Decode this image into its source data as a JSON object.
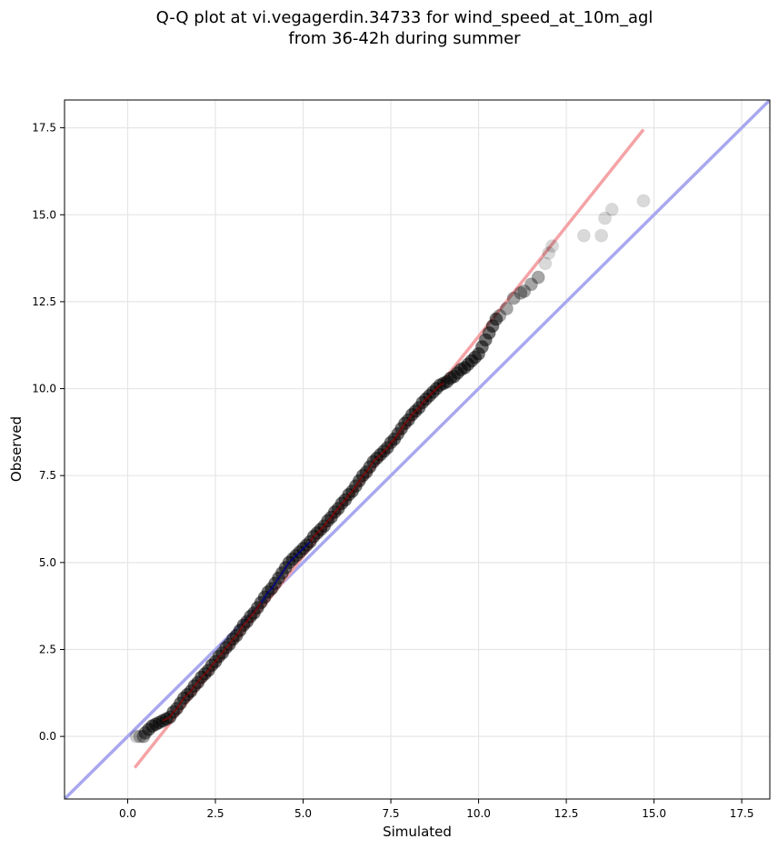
{
  "title_line1": "Q-Q plot at vi.vegagerdin.34733 for wind_speed_at_10m_agl",
  "title_line2": "from 36-42h during summer",
  "chart_data": {
    "type": "scatter",
    "xlabel": "Simulated",
    "ylabel": "Observed",
    "xlim": [
      -1.8,
      18.3
    ],
    "ylim": [
      -1.8,
      18.3
    ],
    "xticks": [
      0.0,
      2.5,
      5.0,
      7.5,
      10.0,
      12.5,
      15.0,
      17.5
    ],
    "yticks": [
      0.0,
      2.5,
      5.0,
      7.5,
      10.0,
      12.5,
      15.0,
      17.5
    ],
    "xtick_labels": [
      "0.0",
      "2.5",
      "5.0",
      "7.5",
      "10.0",
      "12.5",
      "15.0",
      "17.5"
    ],
    "ytick_labels": [
      "0.0",
      "2.5",
      "5.0",
      "7.5",
      "10.0",
      "12.5",
      "15.0",
      "17.5"
    ],
    "grid": true,
    "colors": {
      "points": "#000000",
      "fit_line": "#f4a3a6",
      "identity_line": "#a8a8f0",
      "center_red": "#8b0000",
      "center_blue": "#00008b"
    },
    "identity_line": {
      "x": [
        -1.8,
        18.3
      ],
      "y": [
        -1.8,
        18.3
      ]
    },
    "fit_line": {
      "x": [
        0.2,
        14.7
      ],
      "y": [
        -0.9,
        17.45
      ]
    },
    "quantiles": {
      "x": [
        0.25,
        0.35,
        0.45,
        0.5,
        0.6,
        0.7,
        0.8,
        0.9,
        1.0,
        1.1,
        1.2,
        1.3,
        1.4,
        1.5,
        1.6,
        1.7,
        1.8,
        1.9,
        2.0,
        2.1,
        2.2,
        2.3,
        2.4,
        2.5,
        2.6,
        2.7,
        2.8,
        2.9,
        3.0,
        3.1,
        3.2,
        3.3,
        3.4,
        3.5,
        3.6,
        3.7,
        3.8,
        3.9,
        4.0,
        4.1,
        4.2,
        4.3,
        4.4,
        4.5,
        4.6,
        4.7,
        4.8,
        4.9,
        5.0,
        5.1,
        5.2,
        5.3,
        5.4,
        5.5,
        5.6,
        5.7,
        5.8,
        5.9,
        6.0,
        6.1,
        6.2,
        6.3,
        6.4,
        6.5,
        6.6,
        6.7,
        6.8,
        6.9,
        7.0,
        7.1,
        7.2,
        7.3,
        7.4,
        7.5,
        7.6,
        7.7,
        7.8,
        7.9,
        8.0,
        8.1,
        8.2,
        8.3,
        8.4,
        8.5,
        8.6,
        8.7,
        8.8,
        8.9,
        9.0,
        9.1,
        9.2,
        9.3,
        9.4,
        9.5,
        9.6,
        9.7,
        9.8,
        9.9,
        10.0,
        10.1,
        10.2,
        10.3,
        10.4,
        10.5,
        10.6,
        10.8,
        11.0,
        11.2,
        11.3,
        11.5,
        11.7,
        11.9,
        12.0,
        12.1,
        13.0,
        13.5,
        13.6,
        13.8,
        14.7
      ],
      "y": [
        0.0,
        0.0,
        0.0,
        0.1,
        0.2,
        0.3,
        0.35,
        0.4,
        0.45,
        0.5,
        0.55,
        0.7,
        0.8,
        0.95,
        1.1,
        1.2,
        1.3,
        1.45,
        1.55,
        1.7,
        1.8,
        1.9,
        2.05,
        2.15,
        2.3,
        2.4,
        2.55,
        2.65,
        2.8,
        2.9,
        3.05,
        3.2,
        3.3,
        3.45,
        3.55,
        3.7,
        3.85,
        4.0,
        4.15,
        4.25,
        4.4,
        4.55,
        4.7,
        4.85,
        5.0,
        5.1,
        5.2,
        5.3,
        5.4,
        5.5,
        5.6,
        5.75,
        5.85,
        5.95,
        6.05,
        6.2,
        6.3,
        6.45,
        6.55,
        6.7,
        6.8,
        6.95,
        7.05,
        7.2,
        7.35,
        7.5,
        7.6,
        7.75,
        7.9,
        8.0,
        8.1,
        8.2,
        8.3,
        8.45,
        8.55,
        8.7,
        8.85,
        9.0,
        9.1,
        9.25,
        9.35,
        9.45,
        9.6,
        9.7,
        9.8,
        9.9,
        10.0,
        10.1,
        10.15,
        10.2,
        10.3,
        10.35,
        10.45,
        10.55,
        10.6,
        10.7,
        10.8,
        10.9,
        11.0,
        11.2,
        11.4,
        11.6,
        11.8,
        12.0,
        12.1,
        12.3,
        12.6,
        12.75,
        12.8,
        13.0,
        13.2,
        13.6,
        13.9,
        14.1,
        14.4,
        14.4,
        14.9,
        15.15,
        15.4
      ]
    }
  }
}
